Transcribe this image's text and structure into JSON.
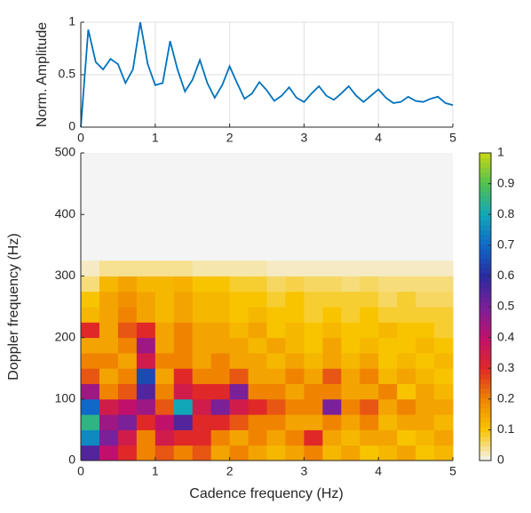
{
  "chart_data": [
    {
      "type": "line",
      "ylabel": "Norm. Amplitude",
      "color": "#0072bd",
      "x": [
        0,
        0.1,
        0.2,
        0.3,
        0.4,
        0.5,
        0.6,
        0.7,
        0.8,
        0.9,
        1,
        1.1,
        1.2,
        1.3,
        1.4,
        1.5,
        1.6,
        1.7,
        1.8,
        1.9,
        2,
        2.1,
        2.2,
        2.3,
        2.4,
        2.5,
        2.6,
        2.7,
        2.8,
        2.9,
        3,
        3.1,
        3.2,
        3.3,
        3.4,
        3.5,
        3.6,
        3.7,
        3.8,
        3.9,
        4,
        4.1,
        4.2,
        4.3,
        4.4,
        4.5,
        4.6,
        4.7,
        4.8,
        4.9,
        5
      ],
      "values": [
        0,
        0.93,
        0.62,
        0.55,
        0.65,
        0.6,
        0.42,
        0.55,
        1,
        0.6,
        0.4,
        0.42,
        0.82,
        0.55,
        0.34,
        0.45,
        0.64,
        0.42,
        0.28,
        0.4,
        0.58,
        0.42,
        0.27,
        0.32,
        0.43,
        0.35,
        0.25,
        0.3,
        0.38,
        0.28,
        0.24,
        0.32,
        0.39,
        0.3,
        0.26,
        0.32,
        0.39,
        0.3,
        0.24,
        0.3,
        0.36,
        0.28,
        0.23,
        0.24,
        0.29,
        0.25,
        0.24,
        0.27,
        0.29,
        0.23,
        0.21
      ],
      "xlim": [
        0,
        5
      ],
      "xticks": [
        0,
        1,
        2,
        3,
        4,
        5
      ],
      "ylim": [
        0,
        1
      ],
      "yticks": [
        0,
        0.5,
        1
      ],
      "grid": true
    },
    {
      "type": "heatmap",
      "xlabel": "Cadence frequency (Hz)",
      "ylabel": "Doppler frequency (Hz)",
      "x": [
        0.125,
        0.375,
        0.625,
        0.875,
        1.125,
        1.375,
        1.625,
        1.875,
        2.125,
        2.375,
        2.625,
        2.875,
        3.125,
        3.375,
        3.625,
        3.875,
        4.125,
        4.375,
        4.625,
        4.875
      ],
      "y": [
        12.5,
        37.5,
        62.5,
        87.5,
        112.5,
        137.5,
        162.5,
        187.5,
        212.5,
        237.5,
        262.5,
        287.5,
        312.5
      ],
      "z": [
        [
          0.55,
          0.4,
          0.3,
          0.2,
          0.25,
          0.2,
          0.25,
          0.15,
          0.2,
          0.15,
          0.12,
          0.15,
          0.2,
          0.12,
          0.15,
          0.1,
          0.12,
          0.15,
          0.1,
          0.12
        ],
        [
          0.75,
          0.5,
          0.35,
          0.2,
          0.35,
          0.3,
          0.3,
          0.2,
          0.15,
          0.2,
          0.15,
          0.2,
          0.3,
          0.15,
          0.12,
          0.15,
          0.15,
          0.1,
          0.12,
          0.15
        ],
        [
          0.85,
          0.45,
          0.5,
          0.3,
          0.4,
          0.55,
          0.3,
          0.3,
          0.25,
          0.2,
          0.2,
          0.15,
          0.15,
          0.2,
          0.15,
          0.2,
          0.12,
          0.15,
          0.15,
          0.12
        ],
        [
          0.7,
          0.35,
          0.4,
          0.45,
          0.25,
          0.8,
          0.35,
          0.5,
          0.35,
          0.3,
          0.25,
          0.2,
          0.2,
          0.5,
          0.2,
          0.25,
          0.15,
          0.2,
          0.15,
          0.15
        ],
        [
          0.45,
          0.2,
          0.25,
          0.55,
          0.2,
          0.35,
          0.3,
          0.3,
          0.5,
          0.2,
          0.2,
          0.15,
          0.2,
          0.2,
          0.15,
          0.15,
          0.2,
          0.1,
          0.15,
          0.12
        ],
        [
          0.25,
          0.15,
          0.2,
          0.65,
          0.15,
          0.3,
          0.2,
          0.2,
          0.25,
          0.15,
          0.15,
          0.2,
          0.15,
          0.25,
          0.15,
          0.2,
          0.12,
          0.15,
          0.12,
          0.1
        ],
        [
          0.2,
          0.2,
          0.15,
          0.35,
          0.2,
          0.2,
          0.15,
          0.2,
          0.15,
          0.15,
          0.12,
          0.15,
          0.12,
          0.15,
          0.12,
          0.15,
          0.1,
          0.12,
          0.1,
          0.12
        ],
        [
          0.15,
          0.15,
          0.2,
          0.45,
          0.15,
          0.2,
          0.15,
          0.15,
          0.15,
          0.12,
          0.15,
          0.12,
          0.1,
          0.15,
          0.1,
          0.12,
          0.1,
          0.1,
          0.12,
          0.1
        ],
        [
          0.3,
          0.15,
          0.25,
          0.3,
          0.15,
          0.2,
          0.15,
          0.15,
          0.12,
          0.15,
          0.1,
          0.12,
          0.1,
          0.12,
          0.1,
          0.1,
          0.12,
          0.1,
          0.1,
          0.08
        ],
        [
          0.12,
          0.15,
          0.2,
          0.15,
          0.12,
          0.15,
          0.12,
          0.12,
          0.1,
          0.12,
          0.1,
          0.1,
          0.08,
          0.1,
          0.08,
          0.1,
          0.08,
          0.08,
          0.08,
          0.08
        ],
        [
          0.1,
          0.15,
          0.18,
          0.15,
          0.12,
          0.15,
          0.12,
          0.12,
          0.1,
          0.1,
          0.08,
          0.1,
          0.08,
          0.08,
          0.08,
          0.08,
          0.06,
          0.08,
          0.06,
          0.06
        ],
        [
          0.05,
          0.12,
          0.15,
          0.12,
          0.12,
          0.13,
          0.1,
          0.1,
          0.08,
          0.08,
          0.06,
          0.07,
          0.06,
          0.06,
          0.05,
          0.06,
          0.05,
          0.05,
          0.05,
          0.05
        ],
        [
          0.02,
          0.04,
          0.04,
          0.04,
          0.04,
          0.04,
          0.03,
          0.03,
          0.03,
          0.03,
          0.02,
          0.02,
          0.02,
          0.02,
          0.02,
          0.02,
          0.02,
          0.02,
          0.02,
          0.02
        ]
      ],
      "xlim": [
        0,
        5
      ],
      "xticks": [
        0,
        1,
        2,
        3,
        4,
        5
      ],
      "ylim": [
        0,
        500
      ],
      "yticks": [
        0,
        100,
        200,
        300,
        400,
        500
      ],
      "clim": [
        0,
        1
      ],
      "cticks": [
        0,
        0.1,
        0.2,
        0.3,
        0.4,
        0.5,
        0.6,
        0.7,
        0.8,
        0.9,
        1
      ],
      "colormap": [
        "#f4f4f4",
        "#f8c400",
        "#f08400",
        "#e02828",
        "#c0106c",
        "#7a2098",
        "#2a2aa0",
        "#1068c8",
        "#10a8b8",
        "#50c050",
        "#c8d814"
      ]
    }
  ]
}
